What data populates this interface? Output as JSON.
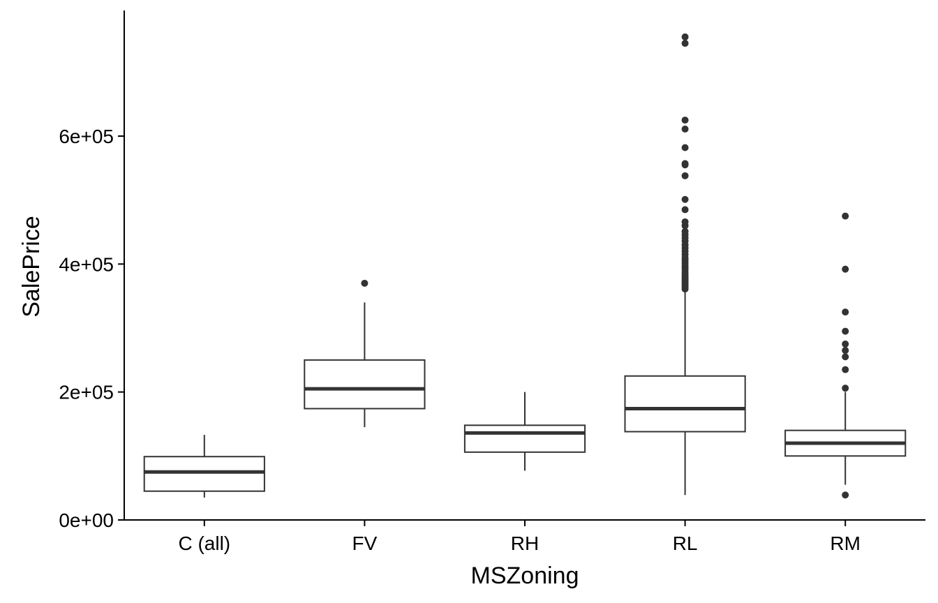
{
  "chart_data": {
    "type": "box",
    "xlabel": "MSZoning",
    "ylabel": "SalePrice",
    "ylim": [
      0,
      790000
    ],
    "y_ticks": [
      {
        "value": 0,
        "label": "0e+00"
      },
      {
        "value": 200000,
        "label": "2e+05"
      },
      {
        "value": 400000,
        "label": "4e+05"
      },
      {
        "value": 600000,
        "label": "6e+05"
      }
    ],
    "categories": [
      "C (all)",
      "FV",
      "RH",
      "RL",
      "RM"
    ],
    "boxes": [
      {
        "category": "C (all)",
        "min": 35000,
        "q1": 45000,
        "median": 75000,
        "q3": 99000,
        "max": 133000,
        "outliers": []
      },
      {
        "category": "FV",
        "min": 145000,
        "q1": 174000,
        "median": 205000,
        "q3": 250000,
        "max": 340000,
        "outliers": [
          370000
        ]
      },
      {
        "category": "RH",
        "min": 77000,
        "q1": 106000,
        "median": 136000,
        "q3": 148000,
        "max": 200000,
        "outliers": []
      },
      {
        "category": "RL",
        "min": 39000,
        "q1": 138000,
        "median": 174000,
        "q3": 225000,
        "max": 358000,
        "outliers": [
          361000,
          364000,
          367000,
          370000,
          373000,
          376000,
          379000,
          382000,
          386000,
          390000,
          394000,
          398000,
          402000,
          406000,
          410000,
          415000,
          420000,
          425000,
          430000,
          436000,
          441000,
          446000,
          451000,
          460000,
          466000,
          485000,
          501000,
          538000,
          555000,
          557000,
          582000,
          611000,
          625000,
          745000,
          755000
        ]
      },
      {
        "category": "RM",
        "min": 55000,
        "q1": 100000,
        "median": 120000,
        "q3": 140000,
        "max": 200000,
        "outliers": [
          39000,
          206000,
          235000,
          255000,
          265000,
          275000,
          295000,
          325000,
          392000,
          475000
        ]
      }
    ],
    "colors": {
      "box_line": "#333333",
      "point": "#333333",
      "axis": "#000000"
    },
    "grid": false,
    "legend": "none"
  }
}
